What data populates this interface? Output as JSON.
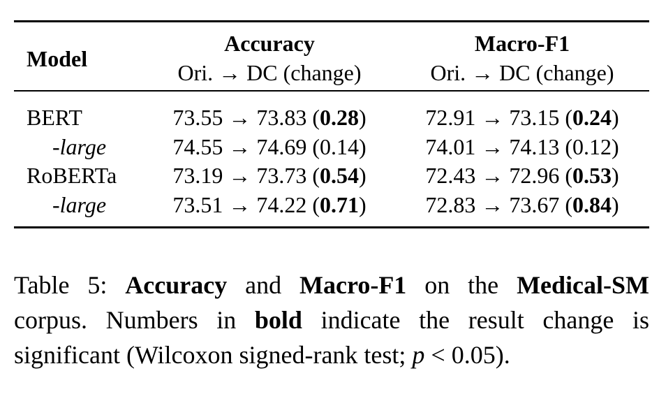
{
  "table": {
    "header": {
      "model": "Model",
      "columns": [
        {
          "title": "Accuracy",
          "subtitle": "Ori. → DC (change)"
        },
        {
          "title": "Macro-F1",
          "subtitle": "Ori. → DC (change)"
        }
      ]
    },
    "notation": {
      "arrow": "→",
      "open": "(",
      "close": ")"
    },
    "rows": [
      {
        "model": "BERT",
        "sub": false,
        "cells": [
          {
            "ori": 73.55,
            "dc": 73.83,
            "change": 0.28,
            "significant": true
          },
          {
            "ori": 72.91,
            "dc": 73.15,
            "change": 0.24,
            "significant": true
          }
        ]
      },
      {
        "model": "-large",
        "sub": true,
        "cells": [
          {
            "ori": 74.55,
            "dc": 74.69,
            "change": 0.14,
            "significant": false
          },
          {
            "ori": 74.01,
            "dc": 74.13,
            "change": 0.12,
            "significant": false
          }
        ]
      },
      {
        "model": "RoBERTa",
        "sub": false,
        "cells": [
          {
            "ori": 73.19,
            "dc": 73.73,
            "change": 0.54,
            "significant": true
          },
          {
            "ori": 72.43,
            "dc": 72.96,
            "change": 0.53,
            "significant": true
          }
        ]
      },
      {
        "model": "-large",
        "sub": true,
        "cells": [
          {
            "ori": 73.51,
            "dc": 74.22,
            "change": 0.71,
            "significant": true
          },
          {
            "ori": 72.83,
            "dc": 73.67,
            "change": 0.84,
            "significant": true
          }
        ]
      }
    ]
  },
  "caption": {
    "lines": [
      [
        {
          "text": "Table 5: ",
          "style": "normal"
        },
        {
          "text": "Accuracy",
          "style": "bold"
        },
        {
          "text": " and ",
          "style": "normal"
        },
        {
          "text": "Macro-F1",
          "style": "bold"
        },
        {
          "text": " on the ",
          "style": "normal"
        },
        {
          "text": "Medical-SM",
          "style": "bold"
        }
      ],
      [
        {
          "text": "corpus. Numbers in ",
          "style": "normal"
        },
        {
          "text": "bold",
          "style": "bold"
        },
        {
          "text": " indicate the result change is",
          "style": "normal"
        }
      ],
      [
        {
          "text": "significant (Wilcoxon signed-rank test; ",
          "style": "normal"
        },
        {
          "text": "p",
          "style": "italic"
        },
        {
          "text": " < 0.05",
          "style": "math"
        },
        {
          "text": ").",
          "style": "normal"
        }
      ]
    ]
  }
}
